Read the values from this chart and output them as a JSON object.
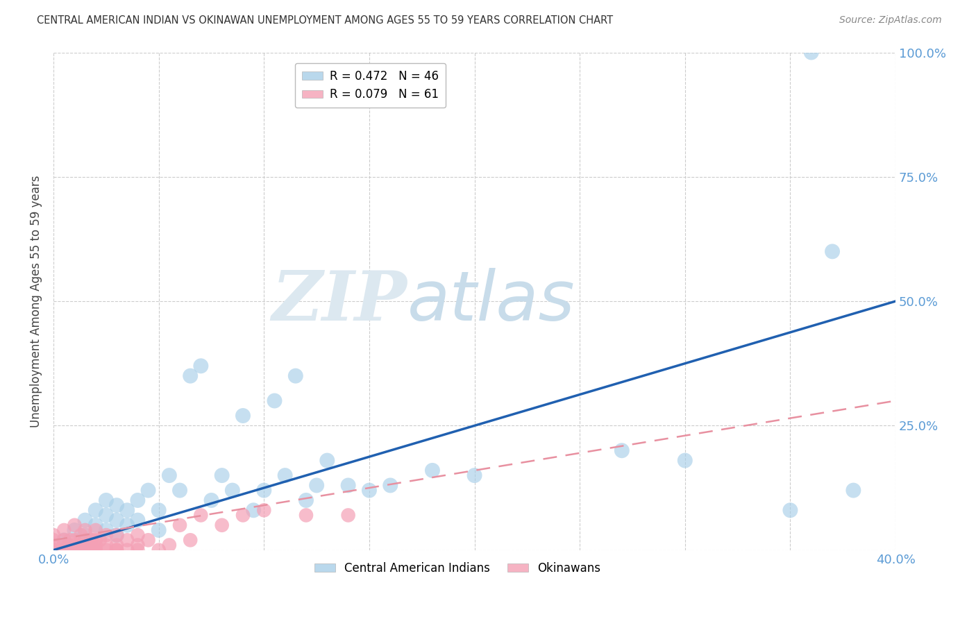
{
  "title": "CENTRAL AMERICAN INDIAN VS OKINAWAN UNEMPLOYMENT AMONG AGES 55 TO 59 YEARS CORRELATION CHART",
  "source": "Source: ZipAtlas.com",
  "ylabel": "Unemployment Among Ages 55 to 59 years",
  "xlim": [
    0.0,
    0.4
  ],
  "ylim": [
    0.0,
    1.0
  ],
  "legend_r_blue": "R = 0.472",
  "legend_n_blue": "N = 46",
  "legend_r_pink": "R = 0.079",
  "legend_n_pink": "N = 61",
  "blue_color": "#a8cfe8",
  "pink_color": "#f4a0b5",
  "trend_blue_color": "#2060b0",
  "trend_pink_color": "#e890a0",
  "watermark_zip": "ZIP",
  "watermark_atlas": "atlas",
  "blue_trend_x0": 0.0,
  "blue_trend_y0": 0.0,
  "blue_trend_x1": 0.4,
  "blue_trend_y1": 0.5,
  "pink_trend_x0": 0.0,
  "pink_trend_y0": 0.02,
  "pink_trend_x1": 0.4,
  "pink_trend_y1": 0.3,
  "blue_scatter_x": [
    0.005,
    0.01,
    0.015,
    0.015,
    0.02,
    0.02,
    0.025,
    0.025,
    0.025,
    0.03,
    0.03,
    0.03,
    0.035,
    0.035,
    0.04,
    0.04,
    0.045,
    0.05,
    0.05,
    0.055,
    0.06,
    0.065,
    0.07,
    0.075,
    0.08,
    0.085,
    0.09,
    0.095,
    0.1,
    0.105,
    0.11,
    0.115,
    0.12,
    0.125,
    0.13,
    0.14,
    0.15,
    0.16,
    0.18,
    0.2,
    0.27,
    0.3,
    0.35,
    0.36,
    0.37,
    0.38
  ],
  "blue_scatter_y": [
    0.02,
    0.04,
    0.03,
    0.06,
    0.05,
    0.08,
    0.04,
    0.07,
    0.1,
    0.03,
    0.06,
    0.09,
    0.05,
    0.08,
    0.06,
    0.1,
    0.12,
    0.04,
    0.08,
    0.15,
    0.12,
    0.35,
    0.37,
    0.1,
    0.15,
    0.12,
    0.27,
    0.08,
    0.12,
    0.3,
    0.15,
    0.35,
    0.1,
    0.13,
    0.18,
    0.13,
    0.12,
    0.13,
    0.16,
    0.15,
    0.2,
    0.18,
    0.08,
    1.0,
    0.6,
    0.12
  ],
  "pink_scatter_x": [
    0.0,
    0.0,
    0.0,
    0.0,
    0.0,
    0.0,
    0.0,
    0.005,
    0.005,
    0.005,
    0.005,
    0.005,
    0.007,
    0.007,
    0.008,
    0.008,
    0.01,
    0.01,
    0.01,
    0.01,
    0.01,
    0.012,
    0.012,
    0.013,
    0.015,
    0.015,
    0.015,
    0.015,
    0.015,
    0.017,
    0.018,
    0.02,
    0.02,
    0.02,
    0.02,
    0.02,
    0.02,
    0.022,
    0.025,
    0.025,
    0.025,
    0.03,
    0.03,
    0.03,
    0.03,
    0.035,
    0.035,
    0.04,
    0.04,
    0.04,
    0.045,
    0.05,
    0.055,
    0.06,
    0.065,
    0.07,
    0.08,
    0.09,
    0.1,
    0.12,
    0.14
  ],
  "pink_scatter_y": [
    0.0,
    0.0,
    0.0,
    0.0,
    0.01,
    0.02,
    0.03,
    0.0,
    0.0,
    0.01,
    0.02,
    0.04,
    0.0,
    0.01,
    0.0,
    0.02,
    0.0,
    0.0,
    0.01,
    0.02,
    0.05,
    0.0,
    0.01,
    0.03,
    0.0,
    0.0,
    0.01,
    0.02,
    0.04,
    0.01,
    0.02,
    0.0,
    0.0,
    0.0,
    0.01,
    0.02,
    0.04,
    0.02,
    0.0,
    0.01,
    0.03,
    0.0,
    0.0,
    0.01,
    0.03,
    0.0,
    0.02,
    0.0,
    0.01,
    0.03,
    0.02,
    0.0,
    0.01,
    0.05,
    0.02,
    0.07,
    0.05,
    0.07,
    0.08,
    0.07,
    0.07
  ]
}
